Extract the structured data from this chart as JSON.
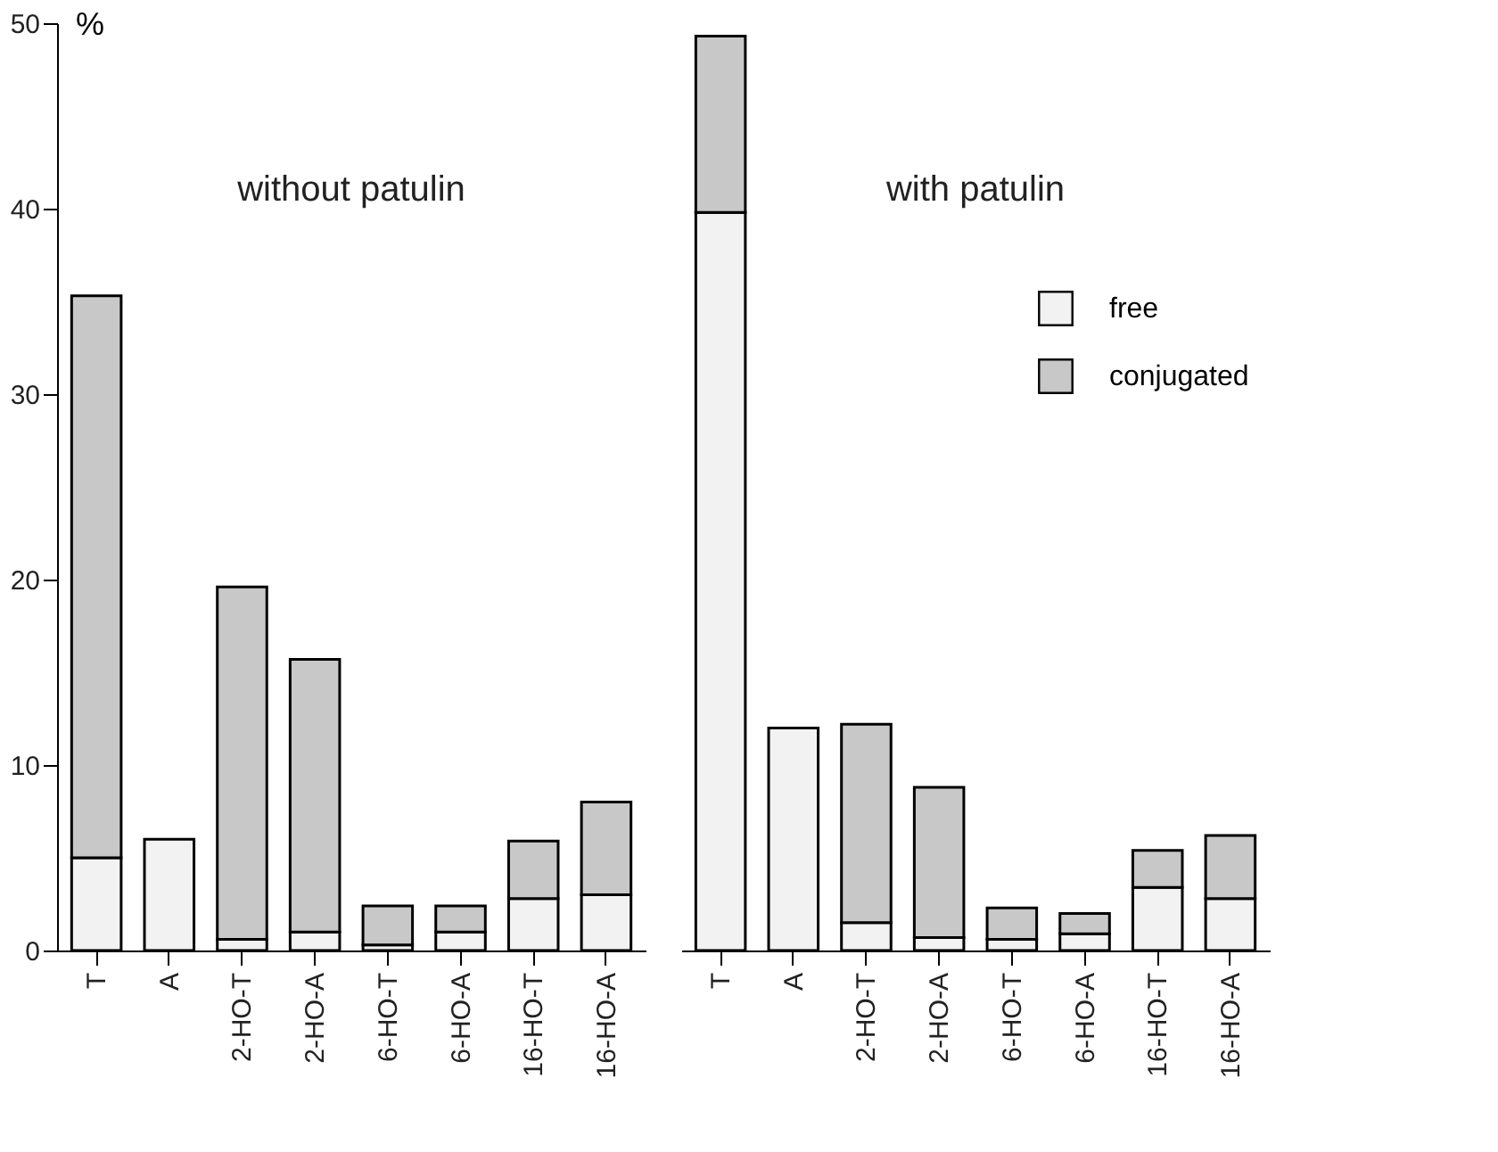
{
  "chart_data": [
    {
      "type": "bar",
      "title": "without patulin",
      "ylabel": "%",
      "stacked": true,
      "categories": [
        "T",
        "A",
        "2-HO-T",
        "2-HO-A",
        "6-HO-T",
        "6-HO-A",
        "16-HO-T",
        "16-HO-A"
      ],
      "ylim": [
        0,
        50
      ],
      "yticks": [
        0,
        10,
        20,
        30,
        40,
        50
      ],
      "series": [
        {
          "color": "#f2f2f2",
          "values": [
            5.0,
            6.0,
            0.6,
            1.0,
            0.3,
            1.0,
            2.8,
            3.0
          ]
        },
        {
          "color": "#c8c8c8",
          "values": [
            30.3,
            null,
            19.0,
            14.7,
            2.1,
            1.4,
            3.1,
            5.0
          ]
        }
      ]
    },
    {
      "type": "bar",
      "title": "with patulin",
      "stacked": true,
      "categories": [
        "T",
        "A",
        "2-HO-T",
        "2-HO-A",
        "6-HO-T",
        "6-HO-A",
        "16-HO-T",
        "16-HO-A"
      ],
      "ylim": [
        0,
        50
      ],
      "yticks": [
        0,
        10,
        20,
        30,
        40,
        50
      ],
      "tick_labels": "x",
      "legend": "right",
      "series": [
        {
          "name": "free",
          "color": "#f2f2f2",
          "values": [
            39.8,
            12.0,
            1.5,
            0.7,
            0.6,
            0.9,
            3.4,
            2.8
          ]
        },
        {
          "name": "conjugated",
          "color": "#c8c8c8",
          "values": [
            9.5,
            null,
            10.7,
            8.1,
            1.7,
            1.1,
            2.0,
            3.4
          ]
        }
      ]
    }
  ]
}
